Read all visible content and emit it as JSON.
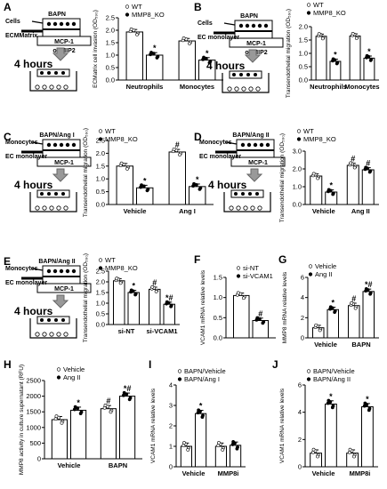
{
  "chart_data": [
    {
      "id": "A",
      "type": "bar",
      "ylabel": "ECMatrix cell invasion (OD₅₉₀)",
      "ylim": [
        0,
        2.5
      ],
      "yticks": [
        "0.0",
        "0.5",
        "1.0",
        "1.5",
        "2.0",
        "2.5"
      ],
      "categories": [
        "Neutrophils",
        "Monocytes"
      ],
      "series": [
        {
          "name": "WT",
          "values": [
            1.93,
            1.57
          ],
          "sig": [
            "",
            ""
          ]
        },
        {
          "name": "MMP8_KO",
          "values": [
            1.0,
            0.8
          ],
          "sig": [
            "*",
            "*"
          ]
        }
      ],
      "schematic": {
        "top": "BAPN",
        "left": "Cells",
        "mid": "ECMMatrix",
        "box": "MCP-1",
        "bottom": "or MIP2",
        "time": "4 hours"
      }
    },
    {
      "id": "B",
      "type": "bar",
      "ylabel": "Transendothelial migration (OD₅₉₀)",
      "ylim": [
        0,
        2.0
      ],
      "yticks": [
        "0.0",
        "0.5",
        "1.0",
        "1.5",
        "2.0"
      ],
      "categories": [
        "Neutrophils",
        "Monocytes"
      ],
      "series": [
        {
          "name": "WT",
          "values": [
            1.64,
            1.65
          ],
          "sig": [
            "",
            ""
          ]
        },
        {
          "name": "MMP8_KO",
          "values": [
            0.7,
            0.82
          ],
          "sig": [
            "*",
            "*"
          ]
        }
      ],
      "schematic": {
        "top": "BAPN",
        "left": "Cells",
        "mid": "EC monolayer",
        "box": "MCP-1",
        "bottom": "or MIP2",
        "time": "4 hours"
      }
    },
    {
      "id": "C",
      "type": "bar",
      "ylabel": "Transendothelial migration (OD₅₉₀)",
      "ylim": [
        0,
        2.5
      ],
      "yticks": [
        "0.0",
        "0.5",
        "1.0",
        "1.5",
        "2.0",
        "2.5"
      ],
      "categories": [
        "Vehicle",
        "Ang I"
      ],
      "series": [
        {
          "name": "WT",
          "values": [
            1.5,
            2.05
          ],
          "sig": [
            "",
            "#"
          ]
        },
        {
          "name": "MMP8_KO",
          "values": [
            0.65,
            0.7
          ],
          "sig": [
            "*",
            "*"
          ]
        }
      ],
      "schematic": {
        "top": "BAPN/Ang I",
        "left": "Monocytes",
        "mid": "EC monolayer",
        "box": "MCP-1",
        "bottom": "",
        "time": "4 hours"
      }
    },
    {
      "id": "D",
      "type": "bar",
      "ylabel": "Transendothelial migration (OD₅₉₀)",
      "ylim": [
        0,
        3.0
      ],
      "yticks": [
        "0.0",
        "1.0",
        "2.0",
        "3.0"
      ],
      "categories": [
        "Vehicle",
        "Ang II"
      ],
      "series": [
        {
          "name": "WT",
          "values": [
            1.6,
            2.2
          ],
          "sig": [
            "",
            "#"
          ]
        },
        {
          "name": "MMP8_KO",
          "values": [
            0.7,
            1.95
          ],
          "sig": [
            "*",
            "#"
          ]
        }
      ],
      "schematic": {
        "top": "BAPN/Ang II",
        "left": "Monocytes",
        "mid": "EC monolayer",
        "box": "MCP-1",
        "bottom": "",
        "time": "4 hours"
      }
    },
    {
      "id": "E",
      "type": "bar",
      "ylabel": "Transendothelial migration (OD₅₉₀)",
      "ylim": [
        0,
        2.5
      ],
      "yticks": [
        "0.0",
        "0.5",
        "1.0",
        "1.5",
        "2.0",
        "2.5"
      ],
      "categories": [
        "si-NT",
        "si-VCAM1"
      ],
      "series": [
        {
          "name": "WT",
          "values": [
            2.05,
            1.65
          ],
          "sig": [
            "",
            "#"
          ]
        },
        {
          "name": "MMP8_KO",
          "values": [
            1.5,
            0.95
          ],
          "sig": [
            "*",
            "*#"
          ]
        }
      ],
      "schematic": {
        "top": "BAPN/Ang II",
        "left": "Monocytes",
        "mid": "EC monolayer",
        "box": "MCP-1",
        "bottom": "",
        "time": "4 hours"
      }
    },
    {
      "id": "F",
      "type": "bar",
      "ylabel": "VCAM1 mRNA relative levels",
      "ylim": [
        0,
        1.5
      ],
      "yticks": [
        "0.0",
        "0.5",
        "1.0",
        "1.5"
      ],
      "categories": [
        ""
      ],
      "series": [
        {
          "name": "si-NT",
          "values": [
            1.05
          ],
          "sig": [
            ""
          ]
        },
        {
          "name": "si-VCAM1",
          "values": [
            0.43
          ],
          "sig": [
            "#"
          ]
        }
      ]
    },
    {
      "id": "G",
      "type": "bar",
      "ylabel": "MMP8 mRNA relative levels",
      "ylim": [
        0,
        6
      ],
      "yticks": [
        "0",
        "2",
        "4",
        "6"
      ],
      "categories": [
        "Vehicle",
        "BAPN"
      ],
      "series": [
        {
          "name": "Vehicle",
          "values": [
            1.0,
            3.2
          ],
          "sig": [
            "",
            "#"
          ]
        },
        {
          "name": "Ang II",
          "values": [
            2.8,
            4.6
          ],
          "sig": [
            "*",
            "*#"
          ]
        }
      ]
    },
    {
      "id": "H",
      "type": "bar",
      "ylabel": "MMP8 activity in culture supernatant (RFU)",
      "ylim": [
        0,
        2500
      ],
      "yticks": [
        "0",
        "500",
        "1000",
        "1500",
        "2000",
        "2500"
      ],
      "categories": [
        "Vehicle",
        "BAPN"
      ],
      "series": [
        {
          "name": "Vehicle",
          "values": [
            1250,
            1600
          ],
          "sig": [
            "",
            "#"
          ]
        },
        {
          "name": "Ang II",
          "values": [
            1550,
            2000
          ],
          "sig": [
            "*",
            "*#"
          ]
        }
      ]
    },
    {
      "id": "I",
      "type": "bar",
      "ylabel": "VCAM1 mRNA relative levels",
      "ylim": [
        0,
        4
      ],
      "yticks": [
        "0",
        "1",
        "2",
        "3",
        "4"
      ],
      "categories": [
        "Vehicle",
        "MMP8i"
      ],
      "series": [
        {
          "name": "BAPN/Vehicle",
          "values": [
            1.0,
            1.0
          ],
          "sig": [
            "",
            ""
          ]
        },
        {
          "name": "BAPN/Ang I",
          "values": [
            2.6,
            1.05
          ],
          "sig": [
            "*",
            ""
          ]
        }
      ]
    },
    {
      "id": "J",
      "type": "bar",
      "ylabel": "VCAM1 mRNA relative levels",
      "ylim": [
        0,
        6
      ],
      "yticks": [
        "0",
        "2",
        "4",
        "6"
      ],
      "categories": [
        "Vehicle",
        "MMP8i"
      ],
      "series": [
        {
          "name": "BAPN/Vehicle",
          "values": [
            1.0,
            1.0
          ],
          "sig": [
            "",
            ""
          ]
        },
        {
          "name": "BAPN/Ang II",
          "values": [
            4.6,
            4.4
          ],
          "sig": [
            "*",
            "*"
          ]
        }
      ]
    }
  ]
}
